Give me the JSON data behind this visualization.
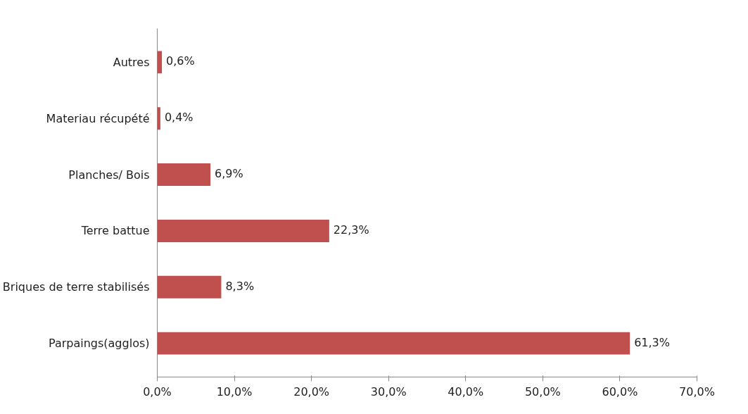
{
  "chart_data": {
    "type": "bar",
    "orientation": "horizontal",
    "categories": [
      "Autres",
      "Materiau récupété",
      "Planches/ Bois",
      "Terre battue",
      "Briques de terre stabilisés",
      "Parpaings(agglos)"
    ],
    "values": [
      0.6,
      0.4,
      6.9,
      22.3,
      8.3,
      61.3
    ],
    "value_labels": [
      "0,6%",
      "0,4%",
      "6,9%",
      "22,3%",
      "8,3%",
      "61,3%"
    ],
    "color": "#c0504d",
    "xlim": [
      0,
      70
    ],
    "xticks": [
      {
        "value": 0,
        "label": "0,0%"
      },
      {
        "value": 10,
        "label": "10,0%"
      },
      {
        "value": 20,
        "label": "20,0%"
      },
      {
        "value": 30,
        "label": "30,0%"
      },
      {
        "value": 40,
        "label": "40,0%"
      },
      {
        "value": 50,
        "label": "50,0%"
      },
      {
        "value": 60,
        "label": "60,0%"
      },
      {
        "value": 70,
        "label": "70,0%"
      }
    ],
    "grid": false
  }
}
